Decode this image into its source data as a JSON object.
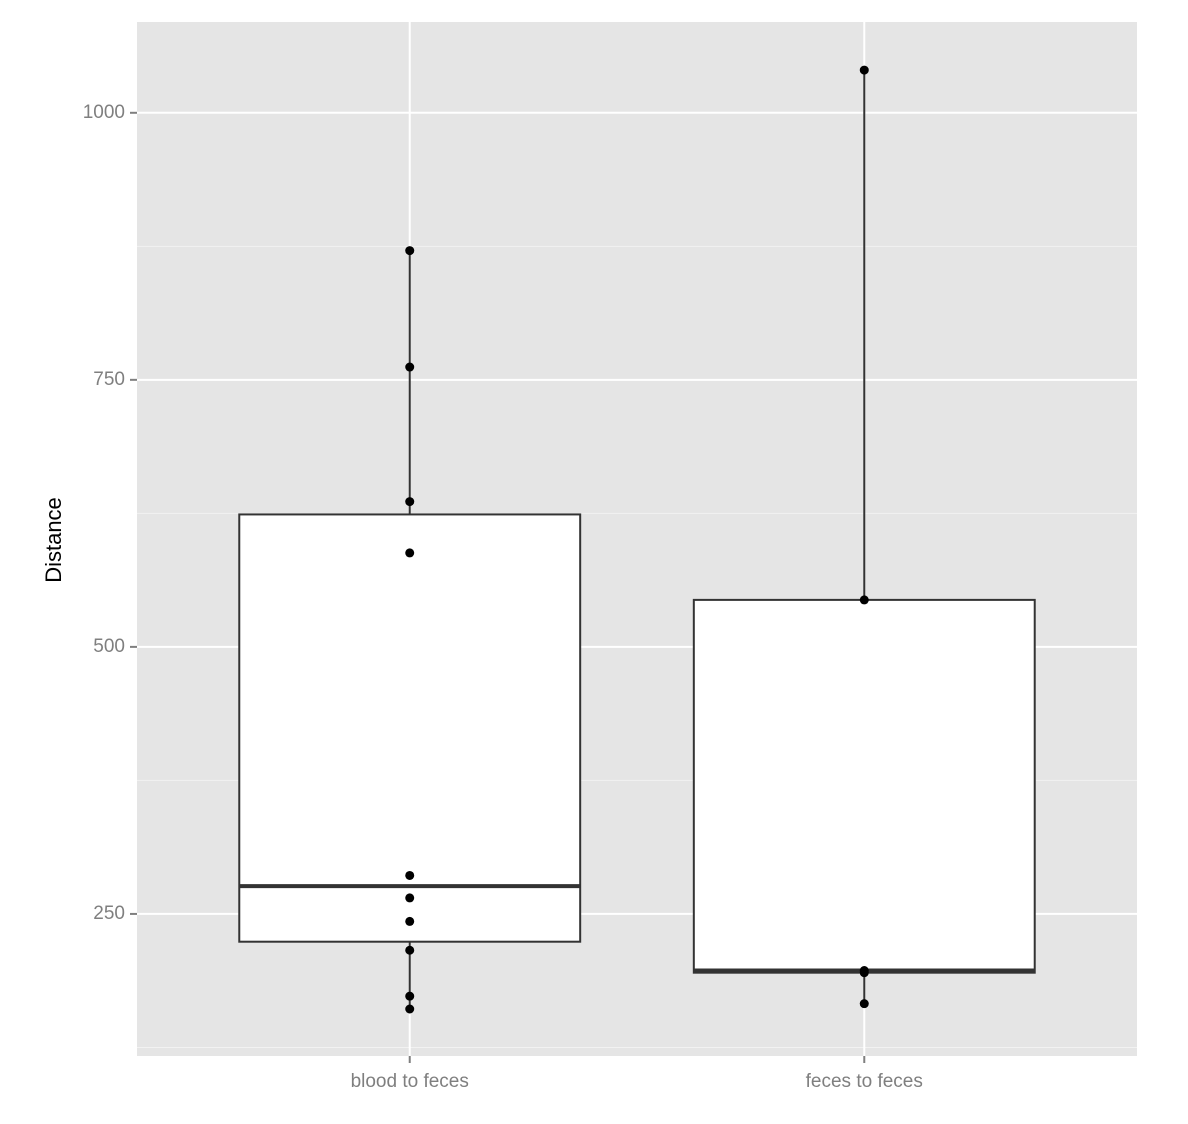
{
  "chart_data": {
    "type": "boxplot",
    "y_label": "Distance",
    "categories": [
      "blood to feces",
      "feces to feces"
    ],
    "boxes": [
      {
        "min": 161,
        "q1": 224,
        "median": 276,
        "q3": 624,
        "max": 871,
        "points": [
          871,
          762,
          636,
          588,
          286,
          265,
          243,
          216,
          173,
          161
        ]
      },
      {
        "min": 166,
        "q1": 195,
        "median": 197,
        "q3": 544,
        "max": 1040,
        "points": [
          1040,
          544,
          197,
          195,
          166
        ]
      }
    ],
    "box_fill": "#ffffff",
    "box_stroke": "#333333",
    "point_color": "#000000",
    "ylim": [
      117,
      1085
    ],
    "yticks": [
      250,
      500,
      750,
      1000
    ],
    "minor_yticks": [
      125,
      375,
      625,
      875
    ],
    "grid": true
  }
}
